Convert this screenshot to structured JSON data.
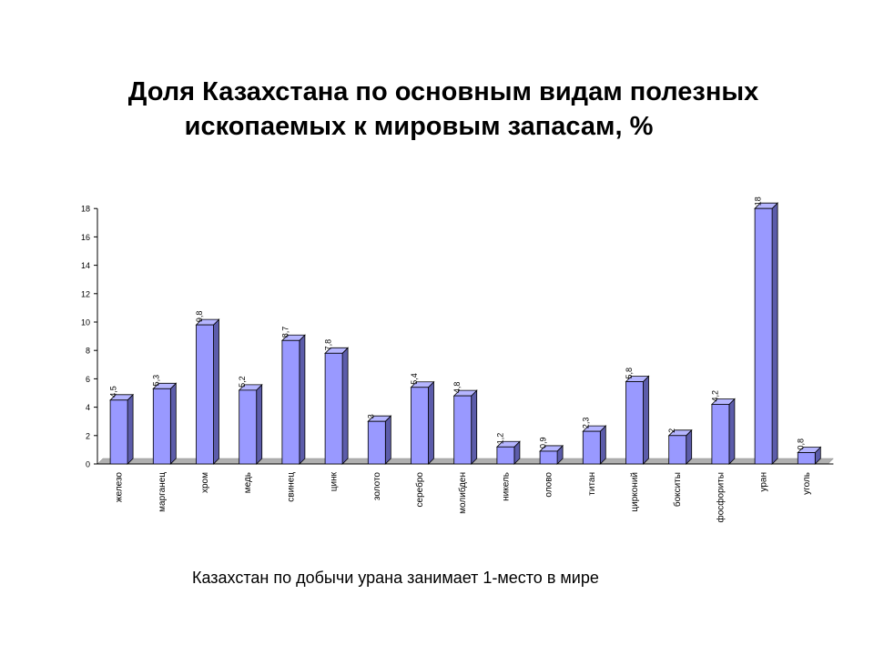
{
  "title": {
    "line1": "Доля Казахстана  по основным видам полезных",
    "line2": "ископаемых к мировым запасам, %"
  },
  "caption": "Казахстан по добычи урана занимает  1-место в мире",
  "colors": {
    "bar_front": "#9999FF",
    "bar_side": "#5C5CAA",
    "bar_top": "#B5B5FF",
    "outline": "#000000",
    "floor": "#B0B0B0"
  },
  "chart_data": {
    "type": "bar",
    "title": "Доля Казахстана  по основным видам полезных ископаемых к мировым запасам, %",
    "categories": [
      "железо",
      "марганец",
      "хром",
      "медь",
      "свинец",
      "цинк",
      "золото",
      "серебро",
      "молибден",
      "никель",
      "олово",
      "титан",
      "цирконий",
      "бокситы",
      "фосфориты",
      "уран",
      "уголь"
    ],
    "values": [
      4.5,
      5.3,
      9.8,
      5.2,
      8.7,
      7.8,
      3,
      5.4,
      4.8,
      1.2,
      0.9,
      2.3,
      5.8,
      2,
      4.2,
      18,
      0.8
    ],
    "data_labels": [
      "4,5",
      "5,3",
      "9,8",
      "5,2",
      "8,7",
      "7,8",
      "3",
      "5,4",
      "4,8",
      "1,2",
      "0,9",
      "2,3",
      "5,8",
      "2",
      "4,2",
      "18",
      "0,8"
    ],
    "yticks": [
      "0",
      "2",
      "4",
      "6",
      "8",
      "10",
      "12",
      "14",
      "16",
      "18"
    ],
    "ylim": [
      0,
      18
    ],
    "xlabel": "",
    "ylabel": "",
    "grid": false,
    "legend": "none"
  }
}
